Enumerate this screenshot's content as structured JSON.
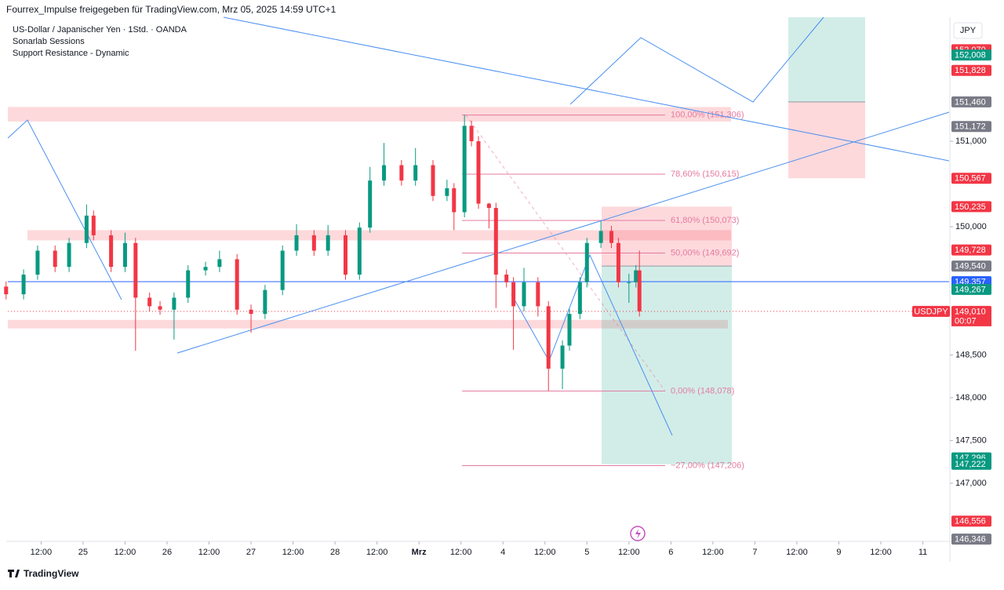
{
  "header": "Fourrex_Impulse freigegeben für TradingView.com, Mrz 05, 2025 14:59 UTC+1",
  "footer": "TradingView",
  "chart_data": {
    "type": "candlestick",
    "legend_lines": [
      "US-Dollar / Japanischer Yen · 1Std. · OANDA",
      "Sonarlab Sessions",
      "Support Resistance - Dynamic"
    ],
    "currency": "JPY",
    "symbol": "USDJPY",
    "countdown": "00:07",
    "up_color": "#089981",
    "down_color": "#f23645",
    "xlim": [
      2.5,
      271.5
    ],
    "ylim": [
      146.32,
      152.45
    ],
    "xticks": [
      {
        "value": 12,
        "label": "12:00"
      },
      {
        "value": 24,
        "label": "25"
      },
      {
        "value": 36,
        "label": "12:00"
      },
      {
        "value": 48,
        "label": "26"
      },
      {
        "value": 60,
        "label": "12:00"
      },
      {
        "value": 72,
        "label": "27"
      },
      {
        "value": 84,
        "label": "12:00"
      },
      {
        "value": 96,
        "label": "28"
      },
      {
        "value": 108,
        "label": "12:00"
      },
      {
        "value": 120,
        "label": "Mrz"
      },
      {
        "value": 132,
        "label": "12:00"
      },
      {
        "value": 144,
        "label": "4"
      },
      {
        "value": 156,
        "label": "12:00"
      },
      {
        "value": 168,
        "label": "5"
      },
      {
        "value": 180,
        "label": "12:00"
      },
      {
        "value": 192,
        "label": "6"
      },
      {
        "value": 204,
        "label": "12:00"
      },
      {
        "value": 216,
        "label": "7"
      },
      {
        "value": 228,
        "label": "12:00"
      },
      {
        "value": 240,
        "label": "9"
      },
      {
        "value": 252,
        "label": "12:00"
      },
      {
        "value": 264,
        "label": "11"
      }
    ],
    "yticks": [
      {
        "value": 151,
        "label": "151,000"
      },
      {
        "value": 150,
        "label": "150,000"
      },
      {
        "value": 148.5,
        "label": "148,500"
      },
      {
        "value": 148,
        "label": "148,000"
      },
      {
        "value": 147.5,
        "label": "147,500"
      },
      {
        "value": 147,
        "label": "147,000"
      }
    ],
    "x": [
      2,
      7,
      11,
      16,
      20,
      25,
      27,
      32,
      36,
      39,
      43,
      46,
      50,
      54,
      59,
      63,
      68,
      72,
      76,
      81,
      85,
      90,
      94,
      99,
      103,
      106,
      110,
      115,
      119,
      124,
      128,
      130,
      133,
      135,
      137,
      140,
      142,
      145,
      147,
      150,
      154,
      157,
      161,
      163,
      166,
      168,
      172,
      175,
      177,
      180,
      182,
      183
    ],
    "open": [
      149.3,
      149.21,
      149.44,
      149.72,
      149.53,
      149.81,
      150.13,
      149.9,
      149.53,
      149.81,
      149.17,
      149.07,
      149.03,
      149.17,
      149.49,
      149.53,
      149.62,
      149.03,
      148.98,
      149.26,
      149.72,
      149.9,
      149.72,
      149.9,
      149.44,
      149.99,
      150.54,
      150.72,
      150.54,
      150.72,
      150.36,
      150.45,
      150.17,
      151.18,
      151.0,
      150.27,
      150.22,
      149.44,
      149.35,
      149.07,
      149.35,
      149.07,
      148.34,
      148.61,
      148.98,
      149.35,
      149.81,
      149.95,
      149.81,
      149.35,
      149.35,
      149.49
    ],
    "high": [
      149.36,
      149.5,
      149.78,
      149.78,
      149.87,
      150.26,
      150.19,
      149.96,
      149.93,
      149.87,
      149.23,
      149.13,
      149.23,
      149.55,
      149.59,
      149.72,
      149.68,
      149.09,
      149.32,
      149.78,
      150.03,
      149.96,
      150.02,
      149.96,
      150.05,
      150.7,
      150.98,
      150.78,
      150.92,
      150.78,
      150.55,
      150.51,
      151.31,
      151.24,
      151.06,
      150.28,
      150.28,
      149.5,
      149.41,
      149.52,
      149.41,
      149.13,
      148.67,
      149.04,
      149.41,
      149.87,
      150.07,
      150.01,
      149.87,
      149.45,
      149.55,
      149.72
    ],
    "low": [
      149.15,
      149.15,
      149.38,
      149.47,
      149.47,
      149.75,
      149.84,
      149.47,
      149.47,
      148.55,
      149.01,
      148.97,
      148.68,
      149.11,
      149.43,
      149.47,
      148.97,
      148.76,
      148.92,
      149.2,
      149.66,
      149.66,
      149.66,
      149.38,
      149.38,
      149.93,
      150.48,
      150.48,
      150.48,
      150.3,
      150.3,
      149.96,
      150.11,
      150.94,
      150.21,
      149.98,
      149.05,
      149.29,
      148.56,
      149.01,
      148.95,
      148.08,
      148.1,
      148.55,
      148.92,
      149.29,
      149.75,
      149.75,
      149.29,
      149.11,
      149.29,
      148.95
    ],
    "close": [
      149.21,
      149.44,
      149.72,
      149.53,
      149.81,
      150.13,
      149.9,
      149.53,
      149.81,
      149.17,
      149.07,
      149.03,
      149.17,
      149.49,
      149.53,
      149.62,
      149.03,
      148.98,
      149.26,
      149.72,
      149.9,
      149.72,
      149.9,
      149.44,
      149.99,
      150.54,
      150.72,
      150.54,
      150.72,
      150.36,
      150.45,
      150.17,
      151.18,
      151.0,
      150.27,
      150.22,
      149.44,
      149.35,
      149.07,
      149.35,
      149.07,
      148.34,
      148.61,
      148.98,
      149.35,
      149.81,
      149.95,
      149.81,
      149.35,
      149.35,
      149.49,
      149.01
    ],
    "zones": [
      {
        "top": 151.4,
        "bottom": 151.23
      },
      {
        "top": 149.96,
        "bottom": 149.84
      },
      {
        "top": 148.91,
        "bottom": 148.81
      }
    ],
    "current_price": 149.357,
    "last_price": 149.01,
    "position_short": {
      "stop": 150.235,
      "entry": 149.54,
      "target": 147.222
    },
    "position_long": {
      "target": 152.45,
      "entry": 151.46,
      "stop": 150.567
    },
    "fib_levels": [
      {
        "value": 151.306,
        "label": "100,00% (151,306)"
      },
      {
        "value": 150.615,
        "label": "78,60% (150,615)"
      },
      {
        "value": 150.073,
        "label": "61,80% (150,073)"
      },
      {
        "value": 149.692,
        "label": "50,00% (149,692)"
      },
      {
        "value": 148.078,
        "label": "0,00% (148,078)"
      },
      {
        "value": 147.206,
        "label": "−27,00% (147,206)"
      }
    ],
    "price_labels": [
      {
        "value": 152.07,
        "label": "152,070",
        "color": "#f23645"
      },
      {
        "value": 152.008,
        "label": "152,008",
        "color": "#089981"
      },
      {
        "value": 151.828,
        "label": "151,828",
        "color": "#f23645"
      },
      {
        "value": 151.46,
        "label": "151,460",
        "color": "#787b86"
      },
      {
        "value": 151.172,
        "label": "151,172",
        "color": "#787b86"
      },
      {
        "value": 150.567,
        "label": "150,567",
        "color": "#f23645"
      },
      {
        "value": 150.235,
        "label": "150,235",
        "color": "#f23645"
      },
      {
        "value": 149.728,
        "label": "149,728",
        "color": "#f23645"
      },
      {
        "value": 149.54,
        "label": "149,540",
        "color": "#787b86"
      },
      {
        "value": 149.357,
        "label": "149,357",
        "color": "#2962ff"
      },
      {
        "value": 149.267,
        "label": "149,267",
        "color": "#089981"
      },
      {
        "value": 149.01,
        "label": "149,010",
        "color": "#f23645"
      },
      {
        "value": 147.296,
        "label": "147,296",
        "color": "#089981"
      },
      {
        "value": 147.222,
        "label": "147,222",
        "color": "#089981"
      },
      {
        "value": 146.556,
        "label": "146,556",
        "color": "#f23645"
      },
      {
        "value": 146.346,
        "label": "146,346",
        "color": "#787b86"
      }
    ]
  }
}
